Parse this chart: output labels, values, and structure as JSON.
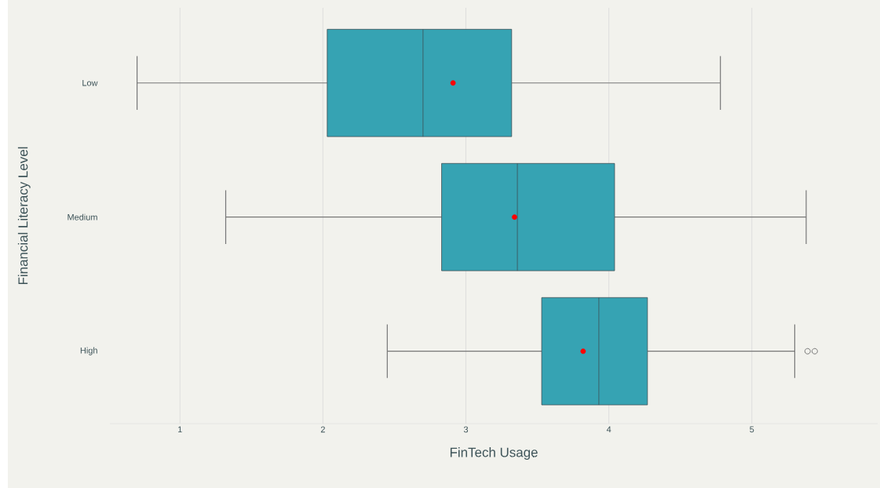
{
  "chart_data": {
    "type": "box",
    "orientation": "horizontal",
    "xlabel": "FinTech Usage",
    "ylabel": "Financial Literacy Level",
    "categories": [
      "Low",
      "Medium",
      "High"
    ],
    "boxes": [
      {
        "low": 0.7,
        "q1": 2.03,
        "median": 2.7,
        "q3": 3.32,
        "high": 4.78,
        "mean": 2.91
      },
      {
        "low": 1.32,
        "q1": 2.83,
        "median": 3.36,
        "q3": 4.04,
        "high": 5.38,
        "mean": 3.34
      },
      {
        "low": 2.45,
        "q1": 3.53,
        "median": 3.93,
        "q3": 4.27,
        "high": 5.3,
        "mean": 3.82,
        "outliers": [
          5.39,
          5.44
        ]
      }
    ],
    "color": "#36a3b3",
    "xlim": [
      0.51,
      5.88
    ],
    "xticks": [
      1,
      2,
      3,
      4,
      5
    ],
    "grid": "x"
  }
}
